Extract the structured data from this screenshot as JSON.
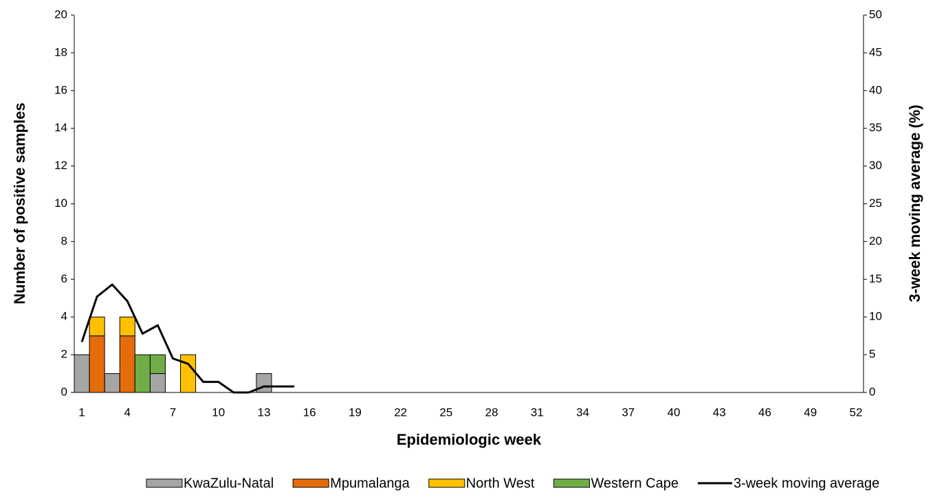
{
  "chart_data": {
    "type": "bar",
    "stacked": true,
    "x_label": "Epidemiologic week",
    "y_label": "Number of  positive samples",
    "y2_label": "3-week moving average (%)",
    "categories": [
      1,
      null,
      null,
      4,
      null,
      null,
      7,
      null,
      null,
      10,
      null,
      null,
      13,
      null,
      null,
      16,
      null,
      null,
      19,
      null,
      null,
      22,
      null,
      null,
      25,
      null,
      null,
      28,
      null,
      null,
      31,
      null,
      null,
      34,
      null,
      null,
      37,
      null,
      null,
      40,
      null,
      null,
      43,
      null,
      null,
      46,
      null,
      null,
      49,
      null,
      null,
      52
    ],
    "ylim": [
      0,
      20
    ],
    "yticks": [
      0,
      2,
      4,
      6,
      8,
      10,
      12,
      14,
      16,
      18,
      20
    ],
    "y2lim": [
      0,
      50
    ],
    "y2ticks": [
      0,
      5,
      10,
      15,
      20,
      25,
      30,
      35,
      40,
      45,
      50
    ],
    "grid": false,
    "series": [
      {
        "name": "KwaZulu-Natal",
        "color": "#a5a5a5",
        "values": [
          2,
          0,
          1,
          0,
          0,
          1,
          0,
          0,
          0,
          0,
          0,
          0,
          1,
          0,
          0,
          0,
          0,
          0,
          0,
          0,
          0,
          0,
          0,
          0,
          0,
          0,
          0,
          0,
          0,
          0,
          0,
          0,
          0,
          0,
          0,
          0,
          0,
          0,
          0,
          0,
          0,
          0,
          0,
          0,
          0,
          0,
          0,
          0,
          0,
          0,
          0,
          0
        ]
      },
      {
        "name": "Mpumalanga",
        "color": "#e46c0a",
        "values": [
          0,
          3,
          0,
          3,
          0,
          0,
          0,
          0,
          0,
          0,
          0,
          0,
          0,
          0,
          0,
          0,
          0,
          0,
          0,
          0,
          0,
          0,
          0,
          0,
          0,
          0,
          0,
          0,
          0,
          0,
          0,
          0,
          0,
          0,
          0,
          0,
          0,
          0,
          0,
          0,
          0,
          0,
          0,
          0,
          0,
          0,
          0,
          0,
          0,
          0,
          0,
          0
        ]
      },
      {
        "name": "North West",
        "color": "#ffc000",
        "values": [
          0,
          1,
          0,
          1,
          0,
          0,
          0,
          2,
          0,
          0,
          0,
          0,
          0,
          0,
          0,
          0,
          0,
          0,
          0,
          0,
          0,
          0,
          0,
          0,
          0,
          0,
          0,
          0,
          0,
          0,
          0,
          0,
          0,
          0,
          0,
          0,
          0,
          0,
          0,
          0,
          0,
          0,
          0,
          0,
          0,
          0,
          0,
          0,
          0,
          0,
          0,
          0
        ]
      },
      {
        "name": "Western Cape",
        "color": "#70ad47",
        "values": [
          0,
          0,
          0,
          0,
          2,
          1,
          0,
          0,
          0,
          0,
          0,
          0,
          0,
          0,
          0,
          0,
          0,
          0,
          0,
          0,
          0,
          0,
          0,
          0,
          0,
          0,
          0,
          0,
          0,
          0,
          0,
          0,
          0,
          0,
          0,
          0,
          0,
          0,
          0,
          0,
          0,
          0,
          0,
          0,
          0,
          0,
          0,
          0,
          0,
          0,
          0,
          0
        ]
      },
      {
        "name": "3-week moving average",
        "type": "line",
        "axis": "y2",
        "color": "#000000",
        "values": [
          6.7,
          12.7,
          14.3,
          12.1,
          7.8,
          8.9,
          4.5,
          3.8,
          1.4,
          1.4,
          0,
          0,
          0.8,
          0.8,
          0.8,
          null,
          null,
          null,
          null,
          null,
          null,
          null,
          null,
          null,
          null,
          null,
          null,
          null,
          null,
          null,
          null,
          null,
          null,
          null,
          null,
          null,
          null,
          null,
          null,
          null,
          null,
          null,
          null,
          null,
          null,
          null,
          null,
          null,
          null,
          null,
          null,
          null
        ]
      }
    ]
  }
}
